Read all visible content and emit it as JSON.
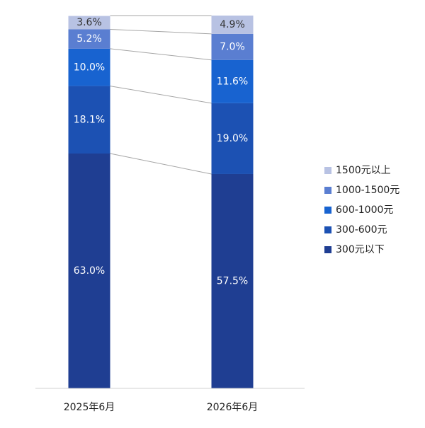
{
  "chart_data": {
    "type": "stacked_bar",
    "categories": [
      "2025年6月",
      "2026年6月"
    ],
    "ylim": [
      0,
      100
    ],
    "series": [
      {
        "name": "300元以下",
        "color": "#1f3e92",
        "values": [
          63.0,
          57.5
        ],
        "value_labels": [
          "63.0%",
          "57.5%"
        ]
      },
      {
        "name": "300-600元",
        "color": "#1c51b3",
        "values": [
          18.1,
          19.0
        ],
        "value_labels": [
          "18.1%",
          "19.0%"
        ]
      },
      {
        "name": "600-1000元",
        "color": "#1863d0",
        "values": [
          10.0,
          11.6
        ],
        "value_labels": [
          "10.0%",
          "11.6%"
        ]
      },
      {
        "name": "1000-1500元",
        "color": "#5a7ed1",
        "values": [
          5.2,
          7.0
        ],
        "value_labels": [
          "5.2%",
          "7.0%"
        ]
      },
      {
        "name": "1500元以上",
        "color": "#b8c2e3",
        "values": [
          3.6,
          4.9
        ],
        "value_labels": [
          "3.6%",
          "4.9%"
        ]
      }
    ]
  }
}
